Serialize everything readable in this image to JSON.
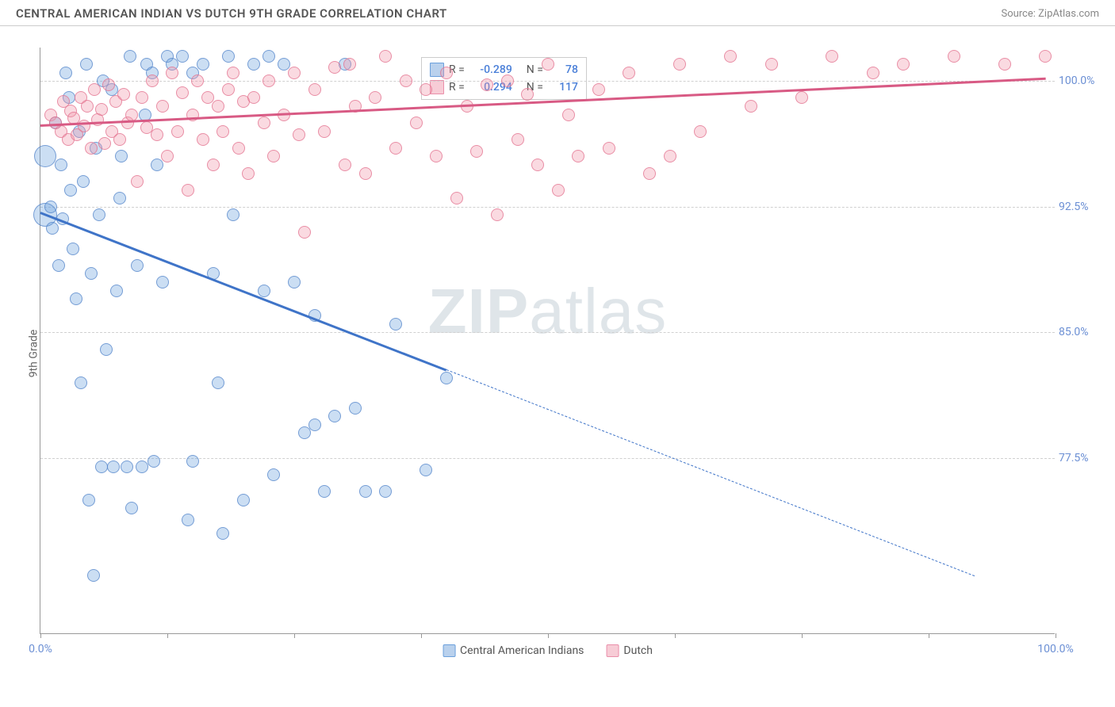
{
  "header": {
    "title": "CENTRAL AMERICAN INDIAN VS DUTCH 9TH GRADE CORRELATION CHART",
    "source": "Source: ZipAtlas.com"
  },
  "watermark": {
    "text_bold": "ZIP",
    "text_light": "atlas"
  },
  "chart": {
    "type": "scatter",
    "y_axis_label": "9th Grade",
    "background_color": "#ffffff",
    "grid_color": "#d0d0d0",
    "axis_color": "#999999",
    "xlim": [
      0,
      100
    ],
    "ylim": [
      67,
      102
    ],
    "x_ticks": [
      0,
      12.5,
      25,
      37.5,
      50,
      62.5,
      75,
      87.5,
      100
    ],
    "x_tick_labels": {
      "0": "0.0%",
      "100": "100.0%"
    },
    "y_gridlines": [
      77.5,
      85.0,
      92.5,
      100.0
    ],
    "y_tick_labels": [
      "77.5%",
      "85.0%",
      "92.5%",
      "100.0%"
    ],
    "y_tick_color": "#6b8fd4",
    "default_marker_size": 16,
    "series": [
      {
        "name": "Central American Indians",
        "color_fill": "rgba(107,160,220,0.35)",
        "color_stroke": "rgba(80,130,200,0.7)",
        "legend_swatch_fill": "#b9d1ed",
        "legend_swatch_border": "#6ba0dc",
        "R": "-0.289",
        "N": "78",
        "trend": {
          "color": "#3f74c8",
          "x1": 0,
          "y1": 92.2,
          "x2": 40,
          "y2": 82.8,
          "dash_to_x": 92,
          "dash_to_y": 70.5
        },
        "points": [
          {
            "x": 0.5,
            "y": 92.0,
            "r": 30
          },
          {
            "x": 0.5,
            "y": 95.5,
            "r": 28
          },
          {
            "x": 1,
            "y": 92.5
          },
          {
            "x": 1.2,
            "y": 91.2
          },
          {
            "x": 1.5,
            "y": 97.5
          },
          {
            "x": 1.8,
            "y": 89.0
          },
          {
            "x": 2,
            "y": 95.0
          },
          {
            "x": 2.2,
            "y": 91.8
          },
          {
            "x": 2.5,
            "y": 100.5
          },
          {
            "x": 2.8,
            "y": 99.0
          },
          {
            "x": 3,
            "y": 93.5
          },
          {
            "x": 3.2,
            "y": 90.0
          },
          {
            "x": 3.5,
            "y": 87.0
          },
          {
            "x": 3.8,
            "y": 97.0
          },
          {
            "x": 4,
            "y": 82.0
          },
          {
            "x": 4.2,
            "y": 94.0
          },
          {
            "x": 4.5,
            "y": 101.0
          },
          {
            "x": 4.8,
            "y": 75.0
          },
          {
            "x": 5,
            "y": 88.5
          },
          {
            "x": 5.2,
            "y": 70.5
          },
          {
            "x": 5.5,
            "y": 96.0
          },
          {
            "x": 5.8,
            "y": 92.0
          },
          {
            "x": 6,
            "y": 77.0
          },
          {
            "x": 6.2,
            "y": 100.0
          },
          {
            "x": 6.5,
            "y": 84.0
          },
          {
            "x": 7,
            "y": 99.5
          },
          {
            "x": 7.2,
            "y": 77.0
          },
          {
            "x": 7.5,
            "y": 87.5
          },
          {
            "x": 7.8,
            "y": 93.0
          },
          {
            "x": 8,
            "y": 95.5
          },
          {
            "x": 8.5,
            "y": 77.0
          },
          {
            "x": 8.8,
            "y": 101.5
          },
          {
            "x": 9,
            "y": 74.5
          },
          {
            "x": 9.5,
            "y": 89.0
          },
          {
            "x": 10,
            "y": 77.0
          },
          {
            "x": 10.3,
            "y": 98.0
          },
          {
            "x": 10.5,
            "y": 101.0
          },
          {
            "x": 11,
            "y": 100.5
          },
          {
            "x": 11.2,
            "y": 77.3
          },
          {
            "x": 11.5,
            "y": 95.0
          },
          {
            "x": 12,
            "y": 88.0
          },
          {
            "x": 12.5,
            "y": 101.5
          },
          {
            "x": 13,
            "y": 101.0
          },
          {
            "x": 14,
            "y": 101.5
          },
          {
            "x": 14.5,
            "y": 73.8
          },
          {
            "x": 15,
            "y": 100.5
          },
          {
            "x": 15,
            "y": 77.3
          },
          {
            "x": 16,
            "y": 101.0
          },
          {
            "x": 17,
            "y": 88.5
          },
          {
            "x": 17.5,
            "y": 82.0
          },
          {
            "x": 18,
            "y": 73.0
          },
          {
            "x": 18.5,
            "y": 101.5
          },
          {
            "x": 19,
            "y": 92.0
          },
          {
            "x": 20,
            "y": 75.0
          },
          {
            "x": 21,
            "y": 101.0
          },
          {
            "x": 22,
            "y": 87.5
          },
          {
            "x": 22.5,
            "y": 101.5
          },
          {
            "x": 23,
            "y": 76.5
          },
          {
            "x": 24,
            "y": 101.0
          },
          {
            "x": 25,
            "y": 88.0
          },
          {
            "x": 26,
            "y": 79.0
          },
          {
            "x": 27,
            "y": 79.5
          },
          {
            "x": 27,
            "y": 86.0
          },
          {
            "x": 28,
            "y": 75.5
          },
          {
            "x": 29,
            "y": 80.0
          },
          {
            "x": 30,
            "y": 101.0
          },
          {
            "x": 31,
            "y": 80.5
          },
          {
            "x": 32,
            "y": 75.5
          },
          {
            "x": 34,
            "y": 75.5
          },
          {
            "x": 35,
            "y": 85.5
          },
          {
            "x": 38,
            "y": 76.8
          },
          {
            "x": 40,
            "y": 82.3
          }
        ]
      },
      {
        "name": "Dutch",
        "color_fill": "rgba(240,150,170,0.35)",
        "color_stroke": "rgba(225,110,140,0.7)",
        "legend_swatch_fill": "#f7ccd6",
        "legend_swatch_border": "#ea8faa",
        "R": "0.294",
        "N": "117",
        "trend": {
          "color": "#d85a84",
          "x1": 0,
          "y1": 97.4,
          "x2": 99,
          "y2": 100.2
        },
        "points": [
          {
            "x": 1,
            "y": 98.0
          },
          {
            "x": 1.5,
            "y": 97.5
          },
          {
            "x": 2,
            "y": 97.0
          },
          {
            "x": 2.3,
            "y": 98.8
          },
          {
            "x": 2.7,
            "y": 96.5
          },
          {
            "x": 3,
            "y": 98.2
          },
          {
            "x": 3.3,
            "y": 97.8
          },
          {
            "x": 3.6,
            "y": 96.8
          },
          {
            "x": 4,
            "y": 99.0
          },
          {
            "x": 4.3,
            "y": 97.3
          },
          {
            "x": 4.6,
            "y": 98.5
          },
          {
            "x": 5,
            "y": 96.0
          },
          {
            "x": 5.3,
            "y": 99.5
          },
          {
            "x": 5.6,
            "y": 97.7
          },
          {
            "x": 6,
            "y": 98.3
          },
          {
            "x": 6.3,
            "y": 96.3
          },
          {
            "x": 6.7,
            "y": 99.8
          },
          {
            "x": 7,
            "y": 97.0
          },
          {
            "x": 7.4,
            "y": 98.8
          },
          {
            "x": 7.8,
            "y": 96.5
          },
          {
            "x": 8.2,
            "y": 99.2
          },
          {
            "x": 8.6,
            "y": 97.5
          },
          {
            "x": 9,
            "y": 98.0
          },
          {
            "x": 9.5,
            "y": 94.0
          },
          {
            "x": 10,
            "y": 99.0
          },
          {
            "x": 10.5,
            "y": 97.2
          },
          {
            "x": 11,
            "y": 100.0
          },
          {
            "x": 11.5,
            "y": 96.8
          },
          {
            "x": 12,
            "y": 98.5
          },
          {
            "x": 12.5,
            "y": 95.5
          },
          {
            "x": 13,
            "y": 100.5
          },
          {
            "x": 13.5,
            "y": 97.0
          },
          {
            "x": 14,
            "y": 99.3
          },
          {
            "x": 14.5,
            "y": 93.5
          },
          {
            "x": 15,
            "y": 98.0
          },
          {
            "x": 15.5,
            "y": 100.0
          },
          {
            "x": 16,
            "y": 96.5
          },
          {
            "x": 16.5,
            "y": 99.0
          },
          {
            "x": 17,
            "y": 95.0
          },
          {
            "x": 17.5,
            "y": 98.5
          },
          {
            "x": 18,
            "y": 97.0
          },
          {
            "x": 18.5,
            "y": 99.5
          },
          {
            "x": 19,
            "y": 100.5
          },
          {
            "x": 19.5,
            "y": 96.0
          },
          {
            "x": 20,
            "y": 98.8
          },
          {
            "x": 20.5,
            "y": 94.5
          },
          {
            "x": 21,
            "y": 99.0
          },
          {
            "x": 22,
            "y": 97.5
          },
          {
            "x": 22.5,
            "y": 100.0
          },
          {
            "x": 23,
            "y": 95.5
          },
          {
            "x": 24,
            "y": 98.0
          },
          {
            "x": 25,
            "y": 100.5
          },
          {
            "x": 25.5,
            "y": 96.8
          },
          {
            "x": 26,
            "y": 91.0
          },
          {
            "x": 27,
            "y": 99.5
          },
          {
            "x": 28,
            "y": 97.0
          },
          {
            "x": 29,
            "y": 100.8
          },
          {
            "x": 30,
            "y": 95.0
          },
          {
            "x": 30.5,
            "y": 101.0
          },
          {
            "x": 31,
            "y": 98.5
          },
          {
            "x": 32,
            "y": 94.5
          },
          {
            "x": 33,
            "y": 99.0
          },
          {
            "x": 34,
            "y": 101.5
          },
          {
            "x": 35,
            "y": 96.0
          },
          {
            "x": 36,
            "y": 100.0
          },
          {
            "x": 37,
            "y": 97.5
          },
          {
            "x": 38,
            "y": 99.5
          },
          {
            "x": 39,
            "y": 95.5
          },
          {
            "x": 40,
            "y": 100.5
          },
          {
            "x": 41,
            "y": 93.0
          },
          {
            "x": 42,
            "y": 98.5
          },
          {
            "x": 43,
            "y": 95.8
          },
          {
            "x": 44,
            "y": 99.8
          },
          {
            "x": 45,
            "y": 92.0
          },
          {
            "x": 46,
            "y": 100.0
          },
          {
            "x": 47,
            "y": 96.5
          },
          {
            "x": 48,
            "y": 99.2
          },
          {
            "x": 49,
            "y": 95.0
          },
          {
            "x": 50,
            "y": 101.0
          },
          {
            "x": 51,
            "y": 93.5
          },
          {
            "x": 52,
            "y": 98.0
          },
          {
            "x": 53,
            "y": 95.5
          },
          {
            "x": 55,
            "y": 99.5
          },
          {
            "x": 56,
            "y": 96.0
          },
          {
            "x": 58,
            "y": 100.5
          },
          {
            "x": 60,
            "y": 94.5
          },
          {
            "x": 62,
            "y": 95.5
          },
          {
            "x": 63,
            "y": 101.0
          },
          {
            "x": 65,
            "y": 97.0
          },
          {
            "x": 68,
            "y": 101.5
          },
          {
            "x": 70,
            "y": 98.5
          },
          {
            "x": 72,
            "y": 101.0
          },
          {
            "x": 75,
            "y": 99.0
          },
          {
            "x": 78,
            "y": 101.5
          },
          {
            "x": 82,
            "y": 100.5
          },
          {
            "x": 85,
            "y": 101.0
          },
          {
            "x": 90,
            "y": 101.5
          },
          {
            "x": 95,
            "y": 101.0
          },
          {
            "x": 99,
            "y": 101.5
          }
        ]
      }
    ],
    "bottom_legend": [
      {
        "label": "Central American Indians",
        "fill": "#b9d1ed",
        "border": "#6ba0dc"
      },
      {
        "label": "Dutch",
        "fill": "#f7ccd6",
        "border": "#ea8faa"
      }
    ]
  }
}
